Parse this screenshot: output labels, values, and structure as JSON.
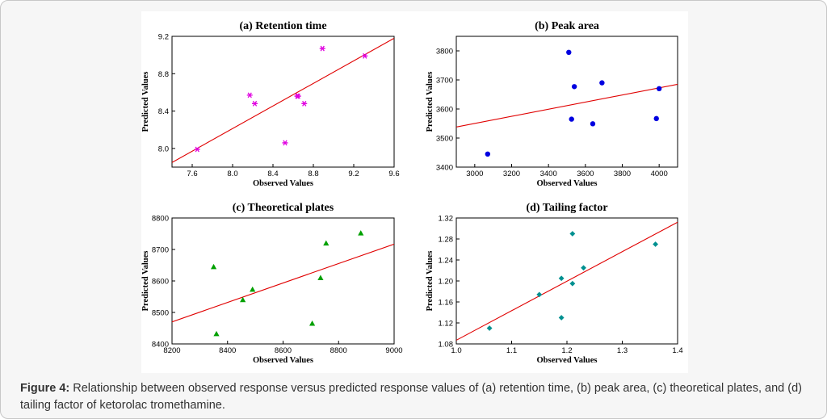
{
  "caption": {
    "label": "Figure 4:",
    "text": " Relationship between observed response versus predicted response values of (a) retention time, (b) peak area, (c) theoretical plates, and (d) tailing factor of ketorolac tromethamine."
  },
  "chart_data": [
    {
      "type": "scatter",
      "title": "(a) Retention time",
      "xlabel": "Observed Values",
      "ylabel": "Predicted Values",
      "xlim": [
        7.4,
        9.6
      ],
      "ylim": [
        7.8,
        9.2
      ],
      "xticks": [
        "7.6",
        "8.0",
        "8.4",
        "8.8",
        "9.2",
        "9.6"
      ],
      "yticks": [
        "8.0",
        "8.4",
        "8.8",
        "9.2"
      ],
      "marker": "asterisk",
      "color": "#e000e0",
      "x": [
        7.65,
        8.17,
        8.22,
        8.52,
        8.64,
        8.65,
        8.71,
        8.89,
        9.31
      ],
      "y": [
        7.99,
        8.57,
        8.48,
        8.06,
        8.56,
        8.56,
        8.48,
        9.07,
        8.99
      ],
      "fit_line": [
        [
          7.4,
          7.85
        ],
        [
          9.6,
          9.18
        ]
      ]
    },
    {
      "type": "scatter",
      "title": "(b) Peak area",
      "xlabel": "Observed Values",
      "ylabel": "Predicted Values",
      "xlim": [
        2900,
        4100
      ],
      "ylim": [
        3400,
        3850
      ],
      "xticks": [
        "3000",
        "3200",
        "3400",
        "3600",
        "3800",
        "4000"
      ],
      "yticks": [
        "3400",
        "3500",
        "3600",
        "3700",
        "3800"
      ],
      "marker": "circle",
      "color": "#0000e0",
      "x": [
        3070,
        3510,
        3525,
        3540,
        3640,
        3690,
        3985,
        4000
      ],
      "y": [
        3445,
        3795,
        3565,
        3677,
        3549,
        3690,
        3567,
        3670
      ],
      "fit_line": [
        [
          2900,
          3538
        ],
        [
          4100,
          3685
        ]
      ]
    },
    {
      "type": "scatter",
      "title": "(c) Theoretical plates",
      "xlabel": "Observed Values",
      "ylabel": "Predicted Values",
      "xlim": [
        8200,
        9000
      ],
      "ylim": [
        8400,
        8800
      ],
      "xticks": [
        "8200",
        "8400",
        "8600",
        "8800",
        "9000"
      ],
      "yticks": [
        "8400",
        "8500",
        "8600",
        "8700",
        "8800"
      ],
      "marker": "triangle",
      "color": "#00a000",
      "x": [
        8350,
        8360,
        8455,
        8490,
        8705,
        8735,
        8755,
        8880
      ],
      "y": [
        8645,
        8432,
        8540,
        8573,
        8465,
        8610,
        8720,
        8752
      ],
      "fit_line": [
        [
          8200,
          8470
        ],
        [
          9000,
          8717
        ]
      ]
    },
    {
      "type": "scatter",
      "title": "(d) Tailing factor",
      "xlabel": "Observed Values",
      "ylabel": "Predicted Values",
      "xlim": [
        1.0,
        1.4
      ],
      "ylim": [
        1.08,
        1.32
      ],
      "xticks": [
        "1.0",
        "1.1",
        "1.2",
        "1.3",
        "1.4"
      ],
      "yticks": [
        "1.08",
        "1.12",
        "1.16",
        "1.20",
        "1.24",
        "1.28",
        "1.32"
      ],
      "marker": "diamond",
      "color": "#009090",
      "x": [
        1.06,
        1.15,
        1.19,
        1.19,
        1.21,
        1.21,
        1.23,
        1.36
      ],
      "y": [
        1.11,
        1.174,
        1.13,
        1.205,
        1.29,
        1.195,
        1.225,
        1.27
      ],
      "fit_line": [
        [
          1.0,
          1.087
        ],
        [
          1.4,
          1.312
        ]
      ]
    }
  ]
}
